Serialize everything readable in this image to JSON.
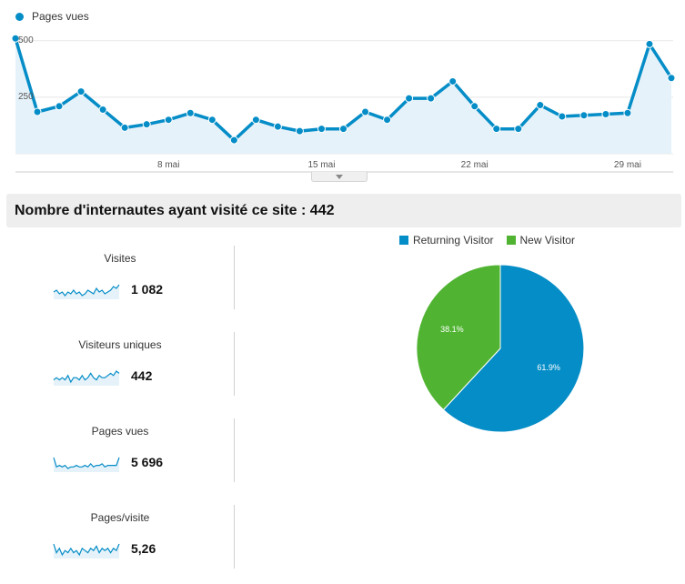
{
  "line_chart": {
    "legend": "Pages vues",
    "y_ticks": [
      {
        "value": 500,
        "label": "500"
      },
      {
        "value": 250,
        "label": "250"
      }
    ],
    "x_ticks": [
      {
        "day": 8,
        "label": "8 mai"
      },
      {
        "day": 15,
        "label": "15 mai"
      },
      {
        "day": 22,
        "label": "22 mai"
      },
      {
        "day": 29,
        "label": "29 mai"
      }
    ]
  },
  "summary": {
    "title": "Nombre d'internautes ayant visité ce site : 442"
  },
  "metrics": [
    {
      "label": "Visites",
      "value": "1 082",
      "spark": [
        5,
        6,
        4,
        5,
        3,
        5,
        4,
        6,
        4,
        5,
        3,
        4,
        6,
        5,
        4,
        7,
        5,
        6,
        4,
        5,
        6,
        8,
        7,
        9
      ]
    },
    {
      "label": "Visiteurs uniques",
      "value": "442",
      "spark": [
        4,
        5,
        4,
        5,
        4,
        6,
        3,
        5,
        5,
        4,
        6,
        4,
        5,
        7,
        5,
        4,
        6,
        5,
        5,
        6,
        7,
        6,
        8,
        7
      ]
    },
    {
      "label": "Pages vues",
      "value": "5 696",
      "spark": [
        9,
        3,
        4,
        3,
        4,
        2,
        3,
        3,
        4,
        3,
        3,
        4,
        3,
        5,
        3,
        4,
        4,
        5,
        3,
        4,
        4,
        4,
        4,
        9
      ]
    },
    {
      "label": "Pages/visite",
      "value": "5,26",
      "spark": [
        8,
        4,
        6,
        3,
        5,
        4,
        6,
        4,
        5,
        3,
        6,
        5,
        4,
        6,
        5,
        7,
        4,
        6,
        5,
        6,
        4,
        6,
        5,
        8
      ]
    }
  ],
  "chart_data": [
    {
      "type": "line",
      "series": [
        {
          "name": "Pages vues",
          "x": [
            1,
            2,
            3,
            4,
            5,
            6,
            7,
            8,
            9,
            10,
            11,
            12,
            13,
            14,
            15,
            16,
            17,
            18,
            19,
            20,
            21,
            22,
            23,
            24,
            25,
            26,
            27,
            28,
            29,
            30,
            31
          ],
          "values": [
            510,
            185,
            210,
            275,
            195,
            115,
            130,
            150,
            180,
            150,
            60,
            150,
            120,
            100,
            110,
            110,
            185,
            150,
            245,
            245,
            320,
            210,
            110,
            110,
            215,
            165,
            170,
            175,
            180,
            485,
            335
          ]
        }
      ],
      "ylim": [
        0,
        535
      ],
      "y_ticks": [
        250,
        500
      ],
      "x_tick_labels": [
        "8 mai",
        "15 mai",
        "22 mai",
        "29 mai"
      ],
      "colors": {
        "line": "#058dc7",
        "fill": "#e6f2fa"
      },
      "legend": "top-left",
      "grid": true
    },
    {
      "type": "pie",
      "categories": [
        "Returning Visitor",
        "New Visitor"
      ],
      "values": [
        61.9,
        38.1
      ],
      "labels": [
        "61.9%",
        "38.1%"
      ],
      "colors": [
        "#058dc7",
        "#50b432"
      ],
      "legend": "top"
    }
  ]
}
